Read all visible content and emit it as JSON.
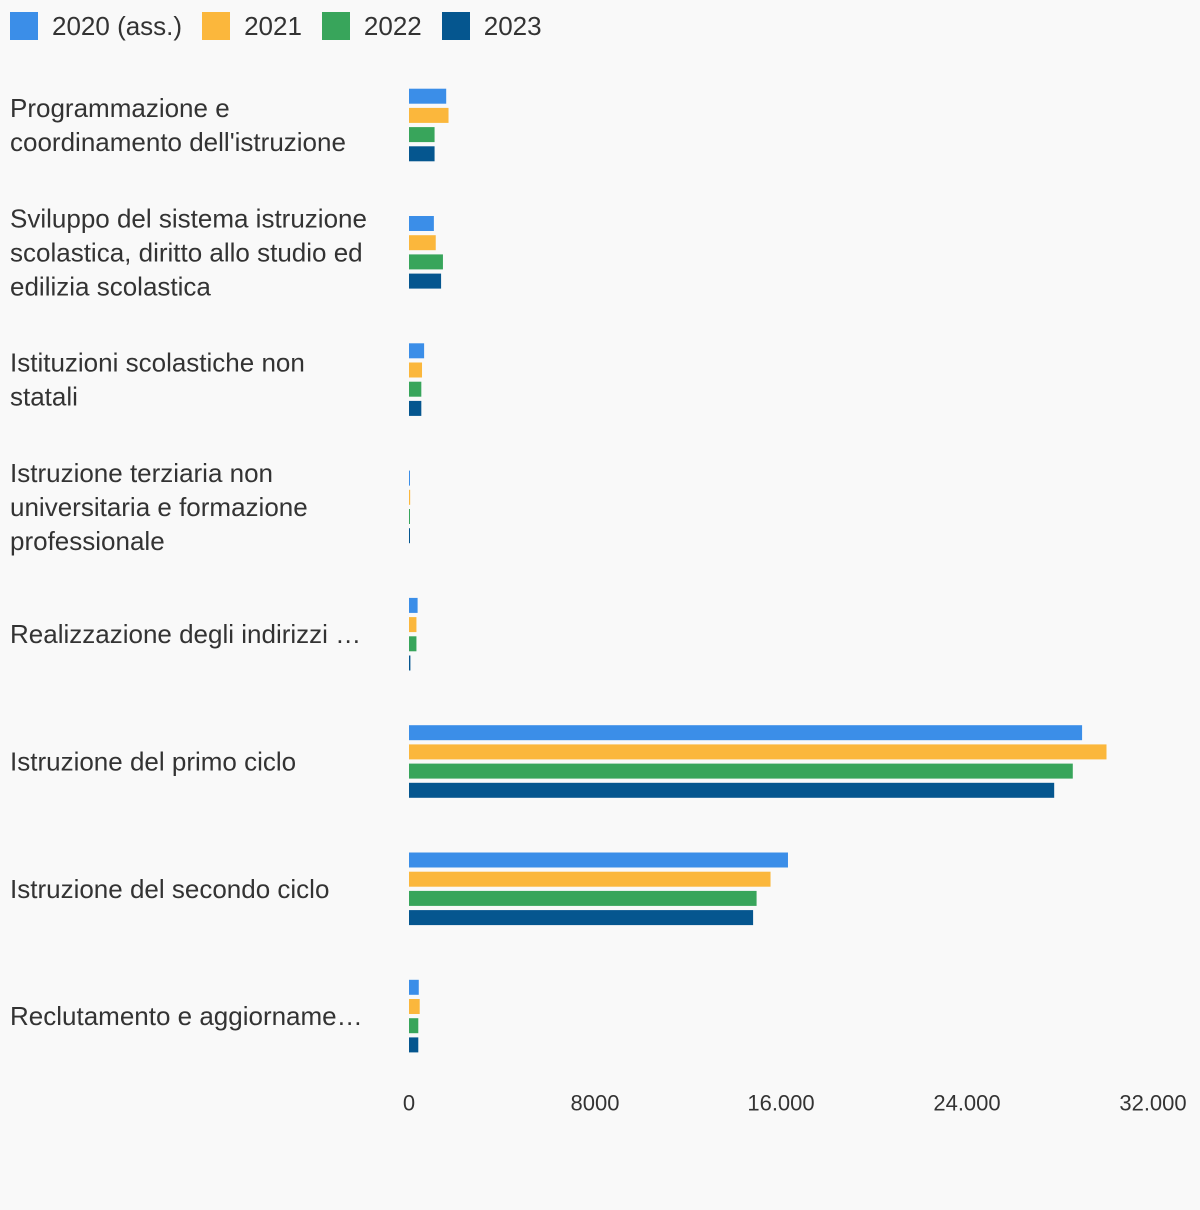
{
  "chart_data": {
    "type": "bar",
    "orientation": "horizontal",
    "categories": [
      [
        "Programmazione e",
        "coordinamento dell'istruzione"
      ],
      [
        "Sviluppo del sistema istruzione",
        "scolastica, diritto allo studio ed",
        "edilizia scolastica"
      ],
      [
        "Istituzioni scolastiche non",
        "statali"
      ],
      [
        "Istruzione terziaria non",
        "universitaria e formazione",
        "professionale"
      ],
      [
        "Realizzazione degli indirizzi …"
      ],
      [
        "Istruzione del primo ciclo"
      ],
      [
        "Istruzione del secondo ciclo"
      ],
      [
        "Reclutamento e aggiorname…"
      ]
    ],
    "series": [
      {
        "name": "2020 (ass.)",
        "color": "#3b8ee8",
        "values": [
          1600,
          1070,
          650,
          10,
          370,
          28950,
          16300,
          420
        ]
      },
      {
        "name": "2021",
        "color": "#fbb73c",
        "values": [
          1700,
          1150,
          560,
          50,
          320,
          30000,
          15550,
          460
        ]
      },
      {
        "name": "2022",
        "color": "#38a55b",
        "values": [
          1100,
          1460,
          530,
          10,
          320,
          28550,
          14950,
          400
        ]
      },
      {
        "name": "2023",
        "color": "#05568f",
        "values": [
          1100,
          1380,
          530,
          10,
          60,
          27750,
          14800,
          400
        ]
      }
    ],
    "xlim": [
      0,
      32000
    ],
    "xticks": [
      0,
      8000,
      16000,
      24000,
      32000
    ],
    "xtick_labels": [
      "0",
      "8000",
      "16.000",
      "24.000",
      "32.000"
    ],
    "legend_position": "top-left",
    "grid": false
  }
}
